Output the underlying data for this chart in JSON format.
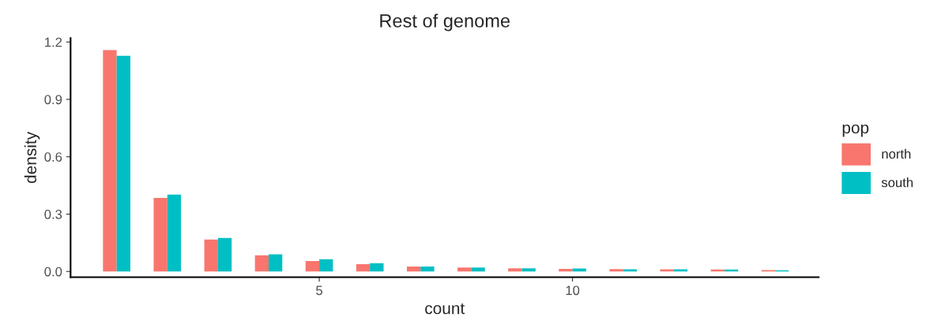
{
  "chart_data": {
    "type": "bar",
    "title": "Rest of genome",
    "xlabel": "count",
    "ylabel": "density",
    "legend_title": "pop",
    "x": [
      1,
      2,
      3,
      4,
      5,
      6,
      7,
      8,
      9,
      10,
      11,
      12,
      13,
      14
    ],
    "series": [
      {
        "name": "north",
        "color": "#f8766d",
        "values": [
          1.158,
          0.385,
          0.167,
          0.085,
          0.055,
          0.038,
          0.026,
          0.021,
          0.017,
          0.013,
          0.012,
          0.011,
          0.01,
          0.007
        ]
      },
      {
        "name": "south",
        "color": "#00bfc4",
        "values": [
          1.128,
          0.402,
          0.175,
          0.09,
          0.064,
          0.043,
          0.026,
          0.021,
          0.017,
          0.015,
          0.011,
          0.011,
          0.01,
          0.006
        ]
      }
    ],
    "xlim": [
      0.09,
      14.86
    ],
    "xticks": [
      5,
      10
    ],
    "ylim": [
      -0.03,
      1.22
    ],
    "yticks": [
      {
        "value": 0,
        "label": "0.0"
      },
      {
        "value": 0.3,
        "label": "0.3"
      },
      {
        "value": 0.6,
        "label": "0.6"
      },
      {
        "value": 0.9,
        "label": "0.9"
      },
      {
        "value": 1.2,
        "label": "1.2"
      }
    ],
    "grid": false,
    "legend": "right"
  }
}
